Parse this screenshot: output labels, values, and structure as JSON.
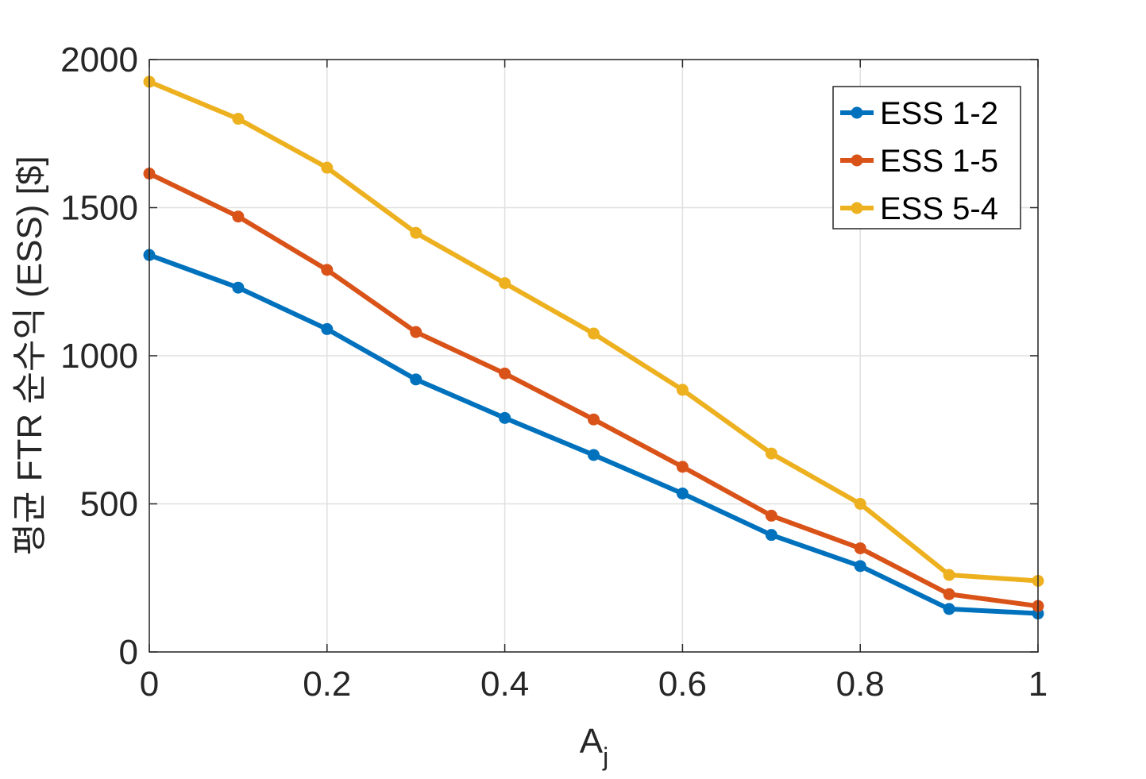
{
  "chart_data": {
    "type": "line",
    "xlabel": "A",
    "xlabel_sub": "j",
    "ylabel": "평균 FTR 순수익 (ESS) [$]",
    "xlim": [
      0,
      1
    ],
    "ylim": [
      0,
      2000
    ],
    "x_ticks": [
      "0",
      "0.2",
      "0.4",
      "0.6",
      "0.8",
      "1"
    ],
    "y_ticks": [
      "0",
      "500",
      "1000",
      "1500",
      "2000"
    ],
    "grid": true,
    "legend_position": "top-right",
    "x": [
      0,
      0.1,
      0.2,
      0.3,
      0.4,
      0.5,
      0.6,
      0.7,
      0.8,
      0.9,
      1.0
    ],
    "series": [
      {
        "name": "ESS 1-2",
        "color": "#0072BD",
        "values": [
          1340,
          1230,
          1090,
          920,
          790,
          665,
          535,
          395,
          290,
          145,
          130
        ]
      },
      {
        "name": "ESS 1-5",
        "color": "#D95319",
        "values": [
          1615,
          1470,
          1290,
          1080,
          940,
          785,
          625,
          460,
          350,
          195,
          155
        ]
      },
      {
        "name": "ESS 5-4",
        "color": "#EDB120",
        "values": [
          1925,
          1800,
          1635,
          1415,
          1245,
          1075,
          885,
          670,
          500,
          260,
          240
        ]
      }
    ]
  }
}
